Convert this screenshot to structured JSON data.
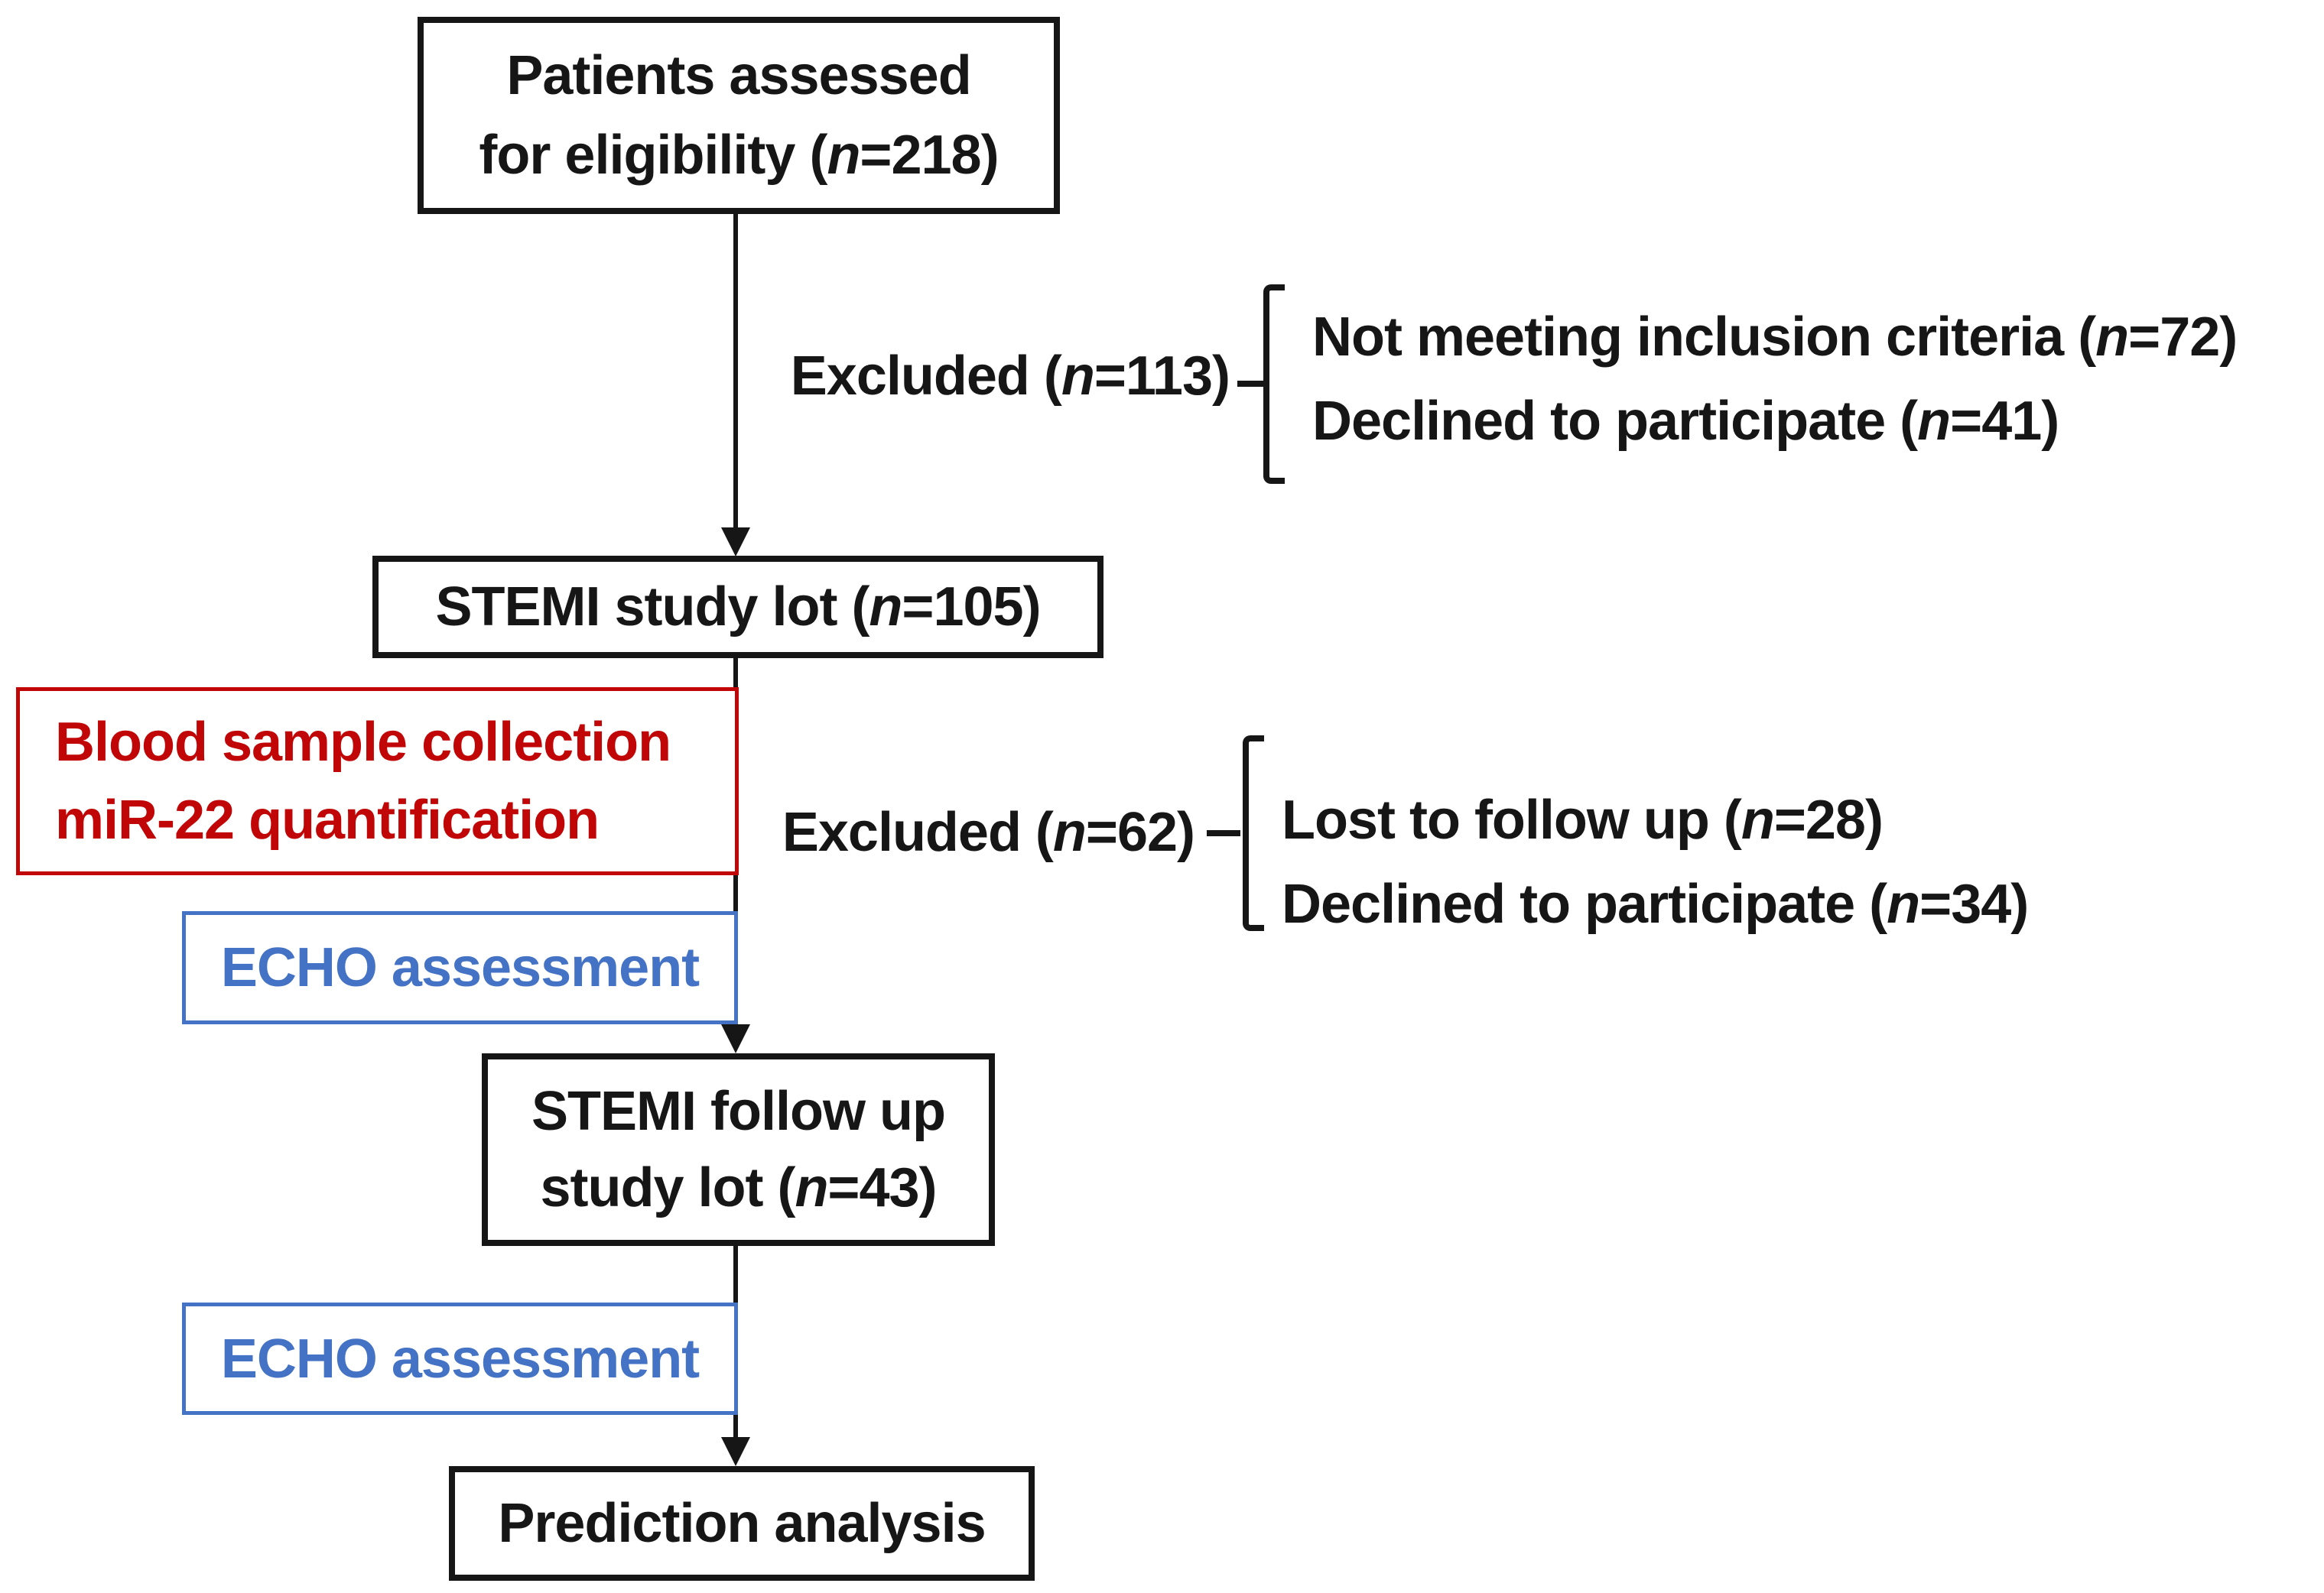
{
  "colors": {
    "ink": "#161616",
    "red": "#c00606",
    "blue": "#4472c4",
    "bg": "#ffffff"
  },
  "diagram": {
    "eligibility_box": {
      "line1": "Patients assessed",
      "line2": "for eligibility (n=218)"
    },
    "exclusion1": {
      "label": "Excluded (n=113)",
      "reasons": [
        "Not meeting inclusion criteria (n=72)",
        "Declined to participate (n=41)"
      ]
    },
    "stemi_box": {
      "label": "STEMI study lot (n=105)"
    },
    "blood_box": {
      "line1": "Blood sample collection",
      "line2": "miR-22 quantification"
    },
    "exclusion2": {
      "label": "Excluded (n=62)",
      "reasons": [
        "Lost to follow up (n=28)",
        "Declined to participate (n=34)"
      ]
    },
    "echo_box1": {
      "label": "ECHO assessment"
    },
    "followup_box": {
      "line1": "STEMI follow up",
      "line2": "study lot (n=43)"
    },
    "echo_box2": {
      "label": "ECHO assessment"
    },
    "prediction_box": {
      "label": "Prediction analysis"
    }
  }
}
